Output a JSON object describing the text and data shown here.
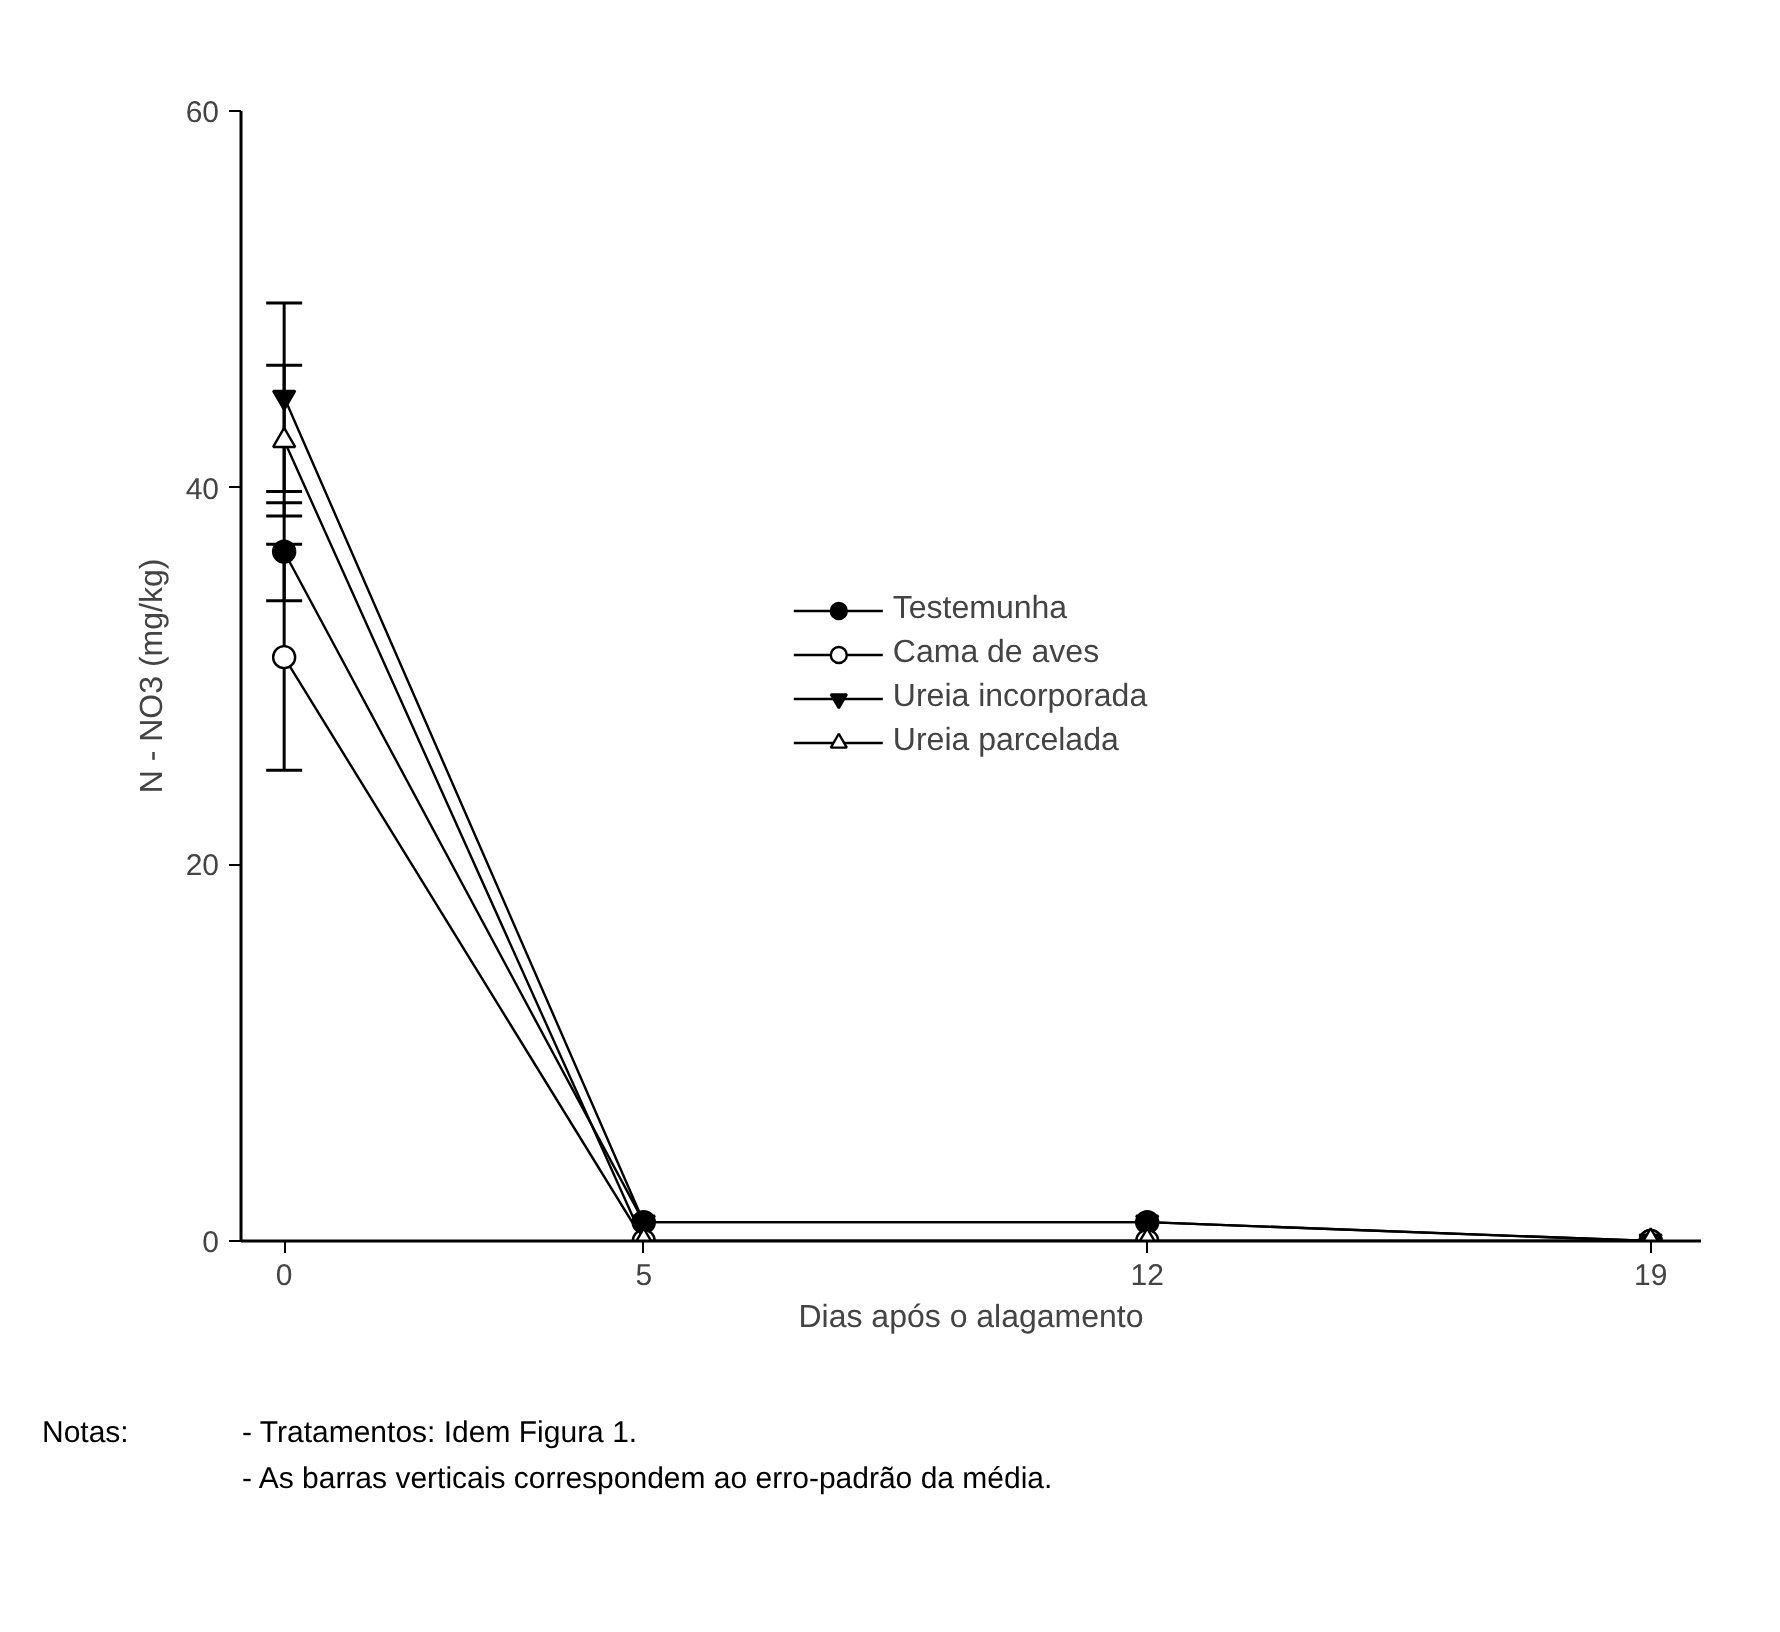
{
  "chart_data": {
    "type": "line",
    "xlabel": "Dias após o alagamento",
    "ylabel": "N - NO3 (mg/kg)",
    "x": [
      0,
      5,
      12,
      19
    ],
    "series": [
      {
        "name": "Testemunha",
        "color": "#000000",
        "marker": "circle",
        "values": [
          36.6,
          1.0,
          1.0,
          0
        ],
        "errors": [
          2.6,
          null,
          null,
          null
        ]
      },
      {
        "name": "Cama de aves",
        "color": "#000000",
        "marker": "circle",
        "values": [
          31.0,
          0,
          0,
          0
        ],
        "errors": [
          6.0,
          null,
          null,
          null
        ]
      },
      {
        "name": "Ureia incorporada",
        "color": "#000000",
        "marker": "triangle",
        "values": [
          44.8,
          1.0,
          1.0,
          0
        ],
        "errors": [
          5.0,
          null,
          null,
          null
        ]
      },
      {
        "name": "Ureia parcelada",
        "color": "#000000",
        "marker": "triangle",
        "values": [
          42.5,
          0,
          0,
          0
        ],
        "errors": [
          4.0,
          null,
          null,
          null
        ]
      }
    ],
    "xlim": [
      -0.6,
      19.7
    ],
    "ylim": [
      0,
      60
    ],
    "xticks": [
      0,
      5,
      12,
      19
    ],
    "yticks": [
      0,
      20,
      40,
      60
    ],
    "grid": false,
    "legend": "center",
    "line_style": "solid",
    "annotations": [
      "Notas:",
      "- Tratamentos: Idem Figura 1.",
      "- As barras verticais correspondem ao erro-padrão da média."
    ]
  }
}
